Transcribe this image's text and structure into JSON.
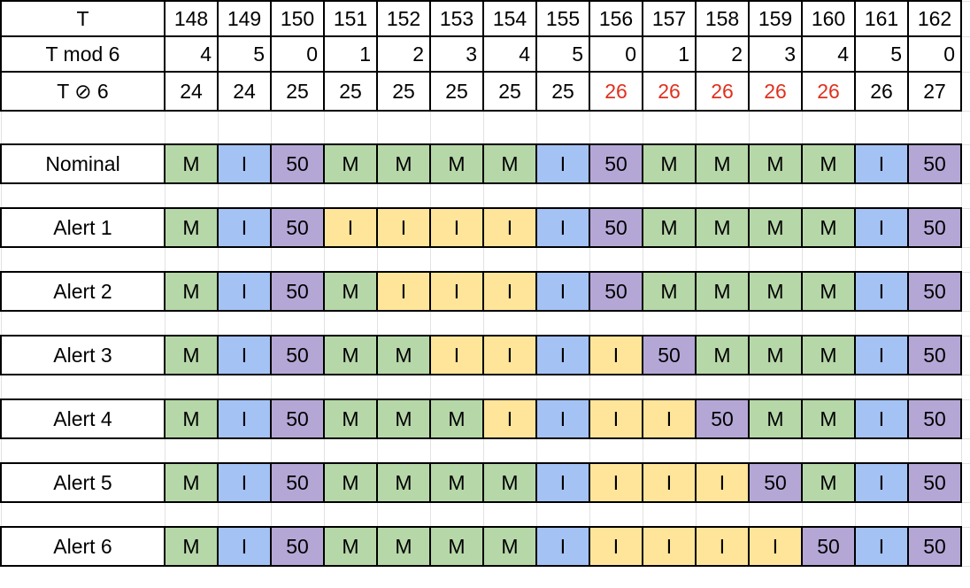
{
  "colors": {
    "M": "#b6d7a8",
    "I": "#a4c2f4",
    "50": "#b4a7d6",
    "alert_I": "#ffe599",
    "red_text": "#e0301e",
    "border": "#000000",
    "gridline": "#e2e2e2"
  },
  "header_rows": [
    {
      "label": "T",
      "align": "center",
      "values": [
        "148",
        "149",
        "150",
        "151",
        "152",
        "153",
        "154",
        "155",
        "156",
        "157",
        "158",
        "159",
        "160",
        "161",
        "162"
      ]
    },
    {
      "label": "T mod 6",
      "align": "right",
      "values": [
        "4",
        "5",
        "0",
        "1",
        "2",
        "3",
        "4",
        "5",
        "0",
        "1",
        "2",
        "3",
        "4",
        "5",
        "0"
      ]
    },
    {
      "label": "T ⊘ 6",
      "align": "center",
      "values": [
        "24",
        "24",
        "25",
        "25",
        "25",
        "25",
        "25",
        "25",
        "26",
        "26",
        "26",
        "26",
        "26",
        "26",
        "27"
      ],
      "red": [
        false,
        false,
        false,
        false,
        false,
        false,
        false,
        false,
        true,
        true,
        true,
        true,
        true,
        false,
        false
      ]
    }
  ],
  "schedule_rows": [
    {
      "label": "Nominal",
      "values": [
        "M",
        "I",
        "50",
        "M",
        "M",
        "M",
        "M",
        "I",
        "50",
        "M",
        "M",
        "M",
        "M",
        "I",
        "50"
      ],
      "alert": [
        false,
        false,
        false,
        false,
        false,
        false,
        false,
        false,
        false,
        false,
        false,
        false,
        false,
        false,
        false
      ]
    },
    {
      "label": "Alert 1",
      "values": [
        "M",
        "I",
        "50",
        "I",
        "I",
        "I",
        "I",
        "I",
        "50",
        "M",
        "M",
        "M",
        "M",
        "I",
        "50"
      ],
      "alert": [
        false,
        false,
        false,
        true,
        true,
        true,
        true,
        false,
        false,
        false,
        false,
        false,
        false,
        false,
        false
      ]
    },
    {
      "label": "Alert 2",
      "values": [
        "M",
        "I",
        "50",
        "M",
        "I",
        "I",
        "I",
        "I",
        "50",
        "M",
        "M",
        "M",
        "M",
        "I",
        "50"
      ],
      "alert": [
        false,
        false,
        false,
        false,
        true,
        true,
        true,
        false,
        false,
        false,
        false,
        false,
        false,
        false,
        false
      ]
    },
    {
      "label": "Alert 3",
      "values": [
        "M",
        "I",
        "50",
        "M",
        "M",
        "I",
        "I",
        "I",
        "I",
        "50",
        "M",
        "M",
        "M",
        "I",
        "50"
      ],
      "alert": [
        false,
        false,
        false,
        false,
        false,
        true,
        true,
        false,
        true,
        false,
        false,
        false,
        false,
        false,
        false
      ]
    },
    {
      "label": "Alert 4",
      "values": [
        "M",
        "I",
        "50",
        "M",
        "M",
        "M",
        "I",
        "I",
        "I",
        "I",
        "50",
        "M",
        "M",
        "I",
        "50"
      ],
      "alert": [
        false,
        false,
        false,
        false,
        false,
        false,
        true,
        false,
        true,
        true,
        false,
        false,
        false,
        false,
        false
      ]
    },
    {
      "label": "Alert 5",
      "values": [
        "M",
        "I",
        "50",
        "M",
        "M",
        "M",
        "M",
        "I",
        "I",
        "I",
        "I",
        "50",
        "M",
        "I",
        "50"
      ],
      "alert": [
        false,
        false,
        false,
        false,
        false,
        false,
        false,
        false,
        true,
        true,
        true,
        false,
        false,
        false,
        false
      ]
    },
    {
      "label": "Alert 6",
      "values": [
        "M",
        "I",
        "50",
        "M",
        "M",
        "M",
        "M",
        "I",
        "I",
        "I",
        "I",
        "I",
        "50",
        "I",
        "50"
      ],
      "alert": [
        false,
        false,
        false,
        false,
        false,
        false,
        false,
        false,
        true,
        true,
        true,
        true,
        false,
        false,
        false
      ]
    }
  ]
}
